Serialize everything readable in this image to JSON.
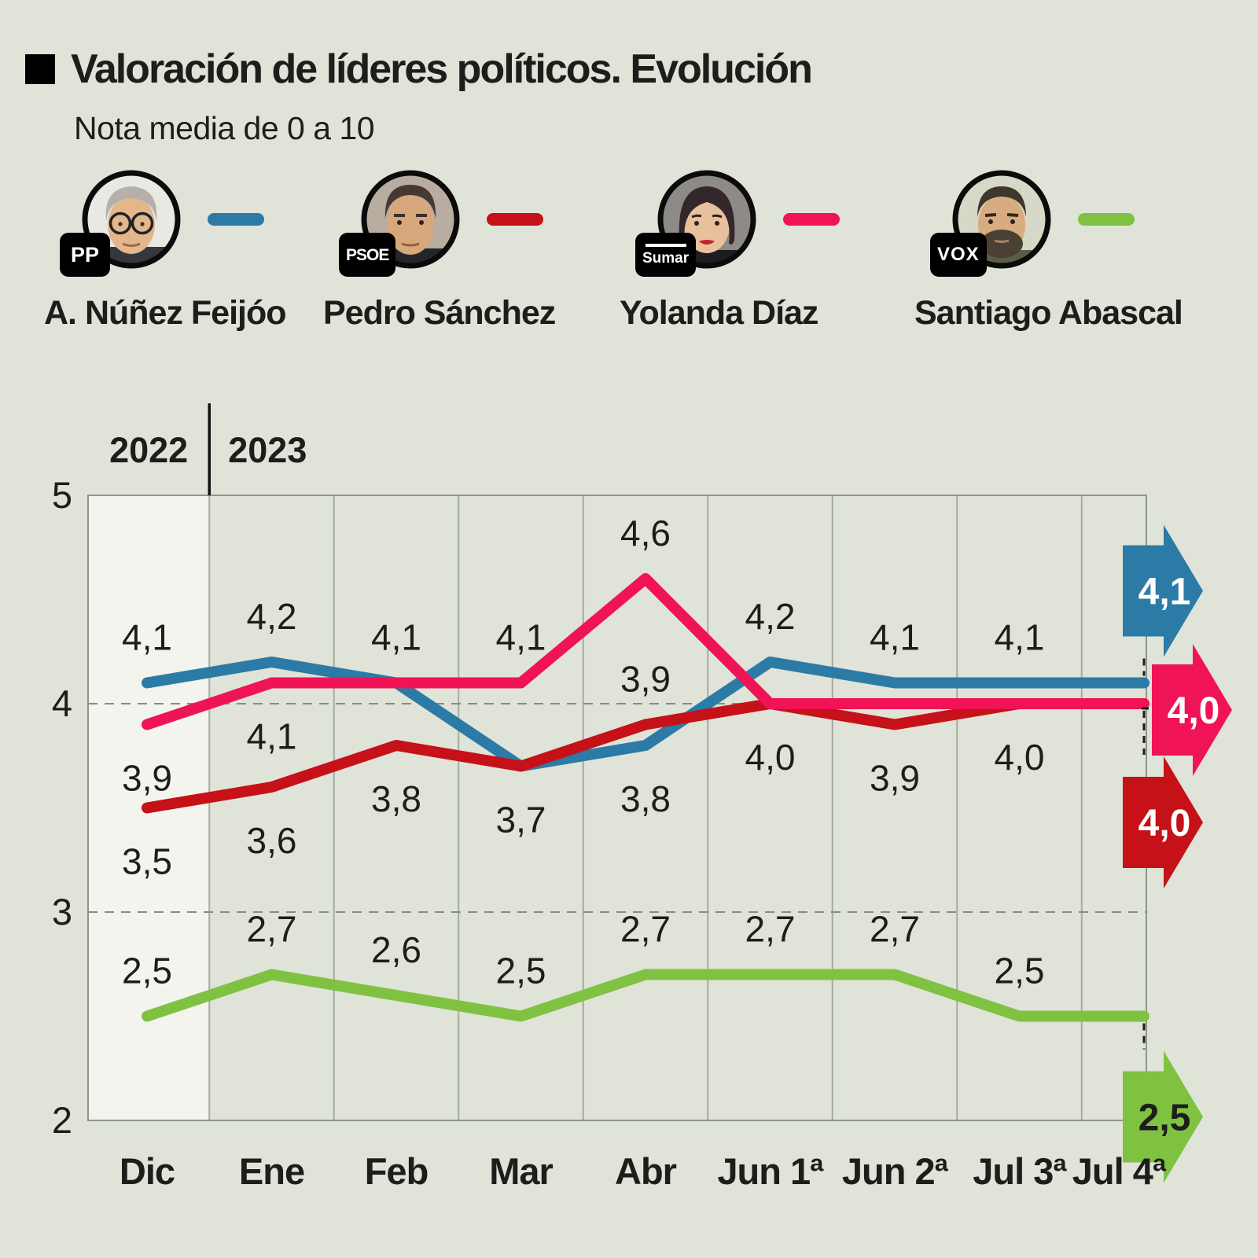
{
  "header": {
    "title": "Valoración de líderes políticos. Evolución",
    "subtitle": "Nota media de 0 a 10"
  },
  "legend": {
    "items": [
      {
        "name": "A. Núñez Feijóo",
        "party": "PP",
        "color": "#2b7ba6"
      },
      {
        "name": "Pedro Sánchez",
        "party": "PSOE",
        "color": "#c51117"
      },
      {
        "name": "Yolanda Díaz",
        "party": "Sumar",
        "color": "#f01356"
      },
      {
        "name": "Santiago Abascal",
        "party": "VOX",
        "color": "#7fc241"
      }
    ]
  },
  "chart_data": {
    "type": "line",
    "title": "Valoración de líderes políticos. Evolución",
    "subtitle": "Nota media de 0 a 10",
    "categories": [
      "Dic",
      "Ene",
      "Feb",
      "Mar",
      "Abr",
      "Jun 1ª",
      "Jun 2ª",
      "Jul 3ª",
      "Jul 4ª"
    ],
    "year_labels": [
      "2022",
      "2023"
    ],
    "year_split_after_category": "Dic",
    "highlight_category": "Dic",
    "ylim": [
      2,
      5
    ],
    "yticks": [
      5,
      4,
      3,
      2
    ],
    "dashed_gridlines": [
      4,
      3
    ],
    "legend_position": "top",
    "grid": "vertical-column-separators",
    "series": [
      {
        "name": "A. Núñez Feijóo",
        "party": "PP",
        "color": "#2b7ba6",
        "values": [
          4.1,
          4.2,
          4.1,
          3.7,
          3.8,
          4.2,
          4.1,
          4.1,
          4.1
        ],
        "point_label_positions": [
          "above",
          "above",
          "above",
          null,
          "below",
          "above",
          "above",
          "above",
          null
        ],
        "arrow": {
          "label": "4,1",
          "dy": -117,
          "dx": 0,
          "text_color": "#ffffff"
        }
      },
      {
        "name": "Pedro Sánchez",
        "party": "PSOE",
        "color": "#c51117",
        "values": [
          3.5,
          3.6,
          3.8,
          3.7,
          3.9,
          4.0,
          3.9,
          4.0,
          4.0
        ],
        "point_label_positions": [
          "below",
          "below",
          "below",
          "below",
          "above",
          "below",
          "below",
          "below",
          null
        ],
        "arrow": {
          "label": "4,0",
          "dy": 151,
          "dx": 0,
          "text_color": "#ffffff"
        }
      },
      {
        "name": "Yolanda Díaz",
        "party": "Sumar",
        "color": "#f01356",
        "values": [
          3.9,
          4.1,
          4.1,
          4.1,
          4.6,
          4.0,
          4.0,
          4.0,
          4.0
        ],
        "point_label_positions": [
          "below",
          "below",
          null,
          "above",
          "above",
          null,
          null,
          null,
          null
        ],
        "arrow": {
          "label": "4,0",
          "dy": 8,
          "dx": 37,
          "text_color": "#ffffff"
        }
      },
      {
        "name": "Santiago Abascal",
        "party": "VOX",
        "color": "#7fc241",
        "values": [
          2.5,
          2.7,
          2.6,
          2.5,
          2.7,
          2.7,
          2.7,
          2.5,
          2.5
        ],
        "point_label_positions": [
          "above",
          "above",
          "above",
          "above",
          "above",
          "above",
          "above",
          "above",
          null
        ],
        "arrow": {
          "label": "2,5",
          "dy": 128,
          "dx": 0,
          "text_color": "#1d1d1b"
        }
      }
    ]
  }
}
